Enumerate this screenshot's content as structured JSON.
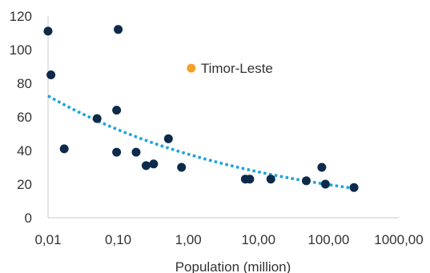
{
  "chart_data": {
    "type": "scatter",
    "title": "",
    "xlabel": "Population (million)",
    "ylabel": "",
    "xscale": "log",
    "xlim": [
      0.01,
      1000
    ],
    "ylim": [
      0,
      120
    ],
    "x_tick_labels": [
      "0,01",
      "0,10",
      "1,00",
      "10,00",
      "100,00",
      "1000,00"
    ],
    "y_tick_labels": [
      "0",
      "20",
      "40",
      "60",
      "80",
      "100",
      "120"
    ],
    "grid": false,
    "legend": "none",
    "colors": {
      "points": "#0d2a4a",
      "highlight": "#f5a02a",
      "trendline": "#1aa3d9"
    },
    "trendline": {
      "type": "power",
      "style": "dotted",
      "from_x": 0.01,
      "to_x": 230,
      "y_start": 72.5,
      "y_end": 17.5
    },
    "series": [
      {
        "points": [
          {
            "x": 0.01,
            "y": 111
          },
          {
            "x": 0.011,
            "y": 85
          },
          {
            "x": 0.017,
            "y": 41
          },
          {
            "x": 0.05,
            "y": 59
          },
          {
            "x": 0.095,
            "y": 64
          },
          {
            "x": 0.095,
            "y": 39
          },
          {
            "x": 0.1,
            "y": 112
          },
          {
            "x": 0.18,
            "y": 39
          },
          {
            "x": 0.25,
            "y": 31
          },
          {
            "x": 0.32,
            "y": 32
          },
          {
            "x": 0.52,
            "y": 47
          },
          {
            "x": 0.8,
            "y": 30
          },
          {
            "x": 6.5,
            "y": 23
          },
          {
            "x": 7.5,
            "y": 23
          },
          {
            "x": 15,
            "y": 23
          },
          {
            "x": 48,
            "y": 22
          },
          {
            "x": 80,
            "y": 30
          },
          {
            "x": 90,
            "y": 20
          },
          {
            "x": 230,
            "y": 18
          }
        ]
      },
      {
        "label": "Timor-Leste",
        "points": [
          {
            "x": 1.1,
            "y": 89
          }
        ]
      }
    ]
  }
}
